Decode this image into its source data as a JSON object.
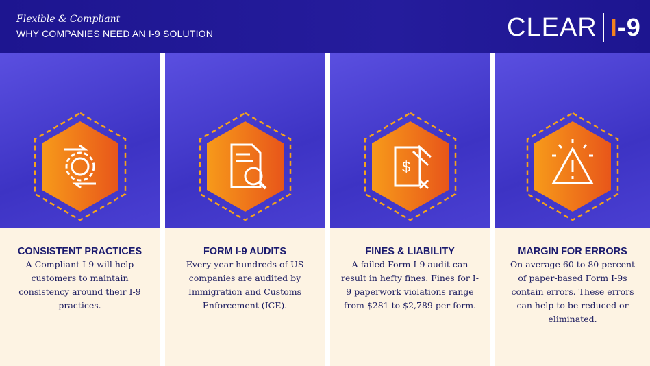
{
  "header": {
    "subtitle": "Flexible & Compliant",
    "title": "WHY COMPANIES NEED AN I-9 SOLUTION",
    "logo": "CLEAR I-9"
  },
  "colors": {
    "header": "#1d1590",
    "accent": "#f5821f",
    "panel": "#fdf3e3",
    "text": "#1a1a6e"
  },
  "cards": [
    {
      "title": "CONSISTENT PRACTICES",
      "body": "A Compliant I-9 will help customers to maintain consistency around their I-9 practices.",
      "icon": "hands-gear-icon"
    },
    {
      "title": "FORM I-9 AUDITS",
      "body": "Every year hundreds of US companies are audited by Immigration and Customs Enforcement (ICE).",
      "icon": "document-search-icon"
    },
    {
      "title": "FINES & LIABILITY",
      "body": "A failed Form I-9 audit can result in hefty fines. Fines for I-9 paperwork violations range from $281 to $2,789 per form.",
      "icon": "document-gavel-icon"
    },
    {
      "title": "MARGIN FOR ERRORS",
      "body": "On average 60 to 80 percent of paper-based Form I-9s contain errors. These errors can help to be reduced or eliminated.",
      "icon": "warning-icon"
    }
  ]
}
